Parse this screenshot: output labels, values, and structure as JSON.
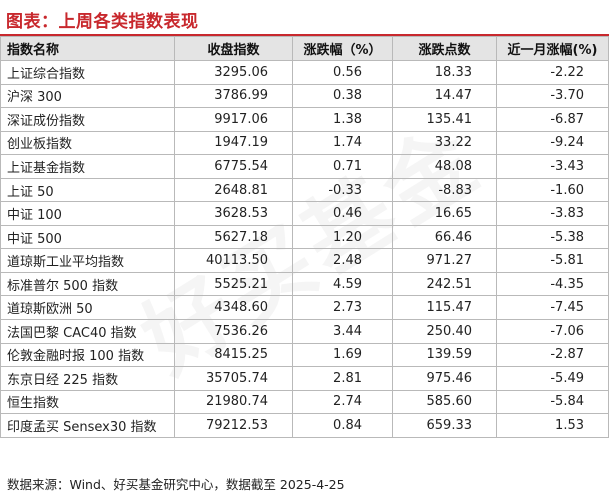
{
  "title": "图表：上周各类指数表现",
  "columns": [
    "指数名称",
    "收盘指数",
    "涨跌幅（%）",
    "涨跌点数",
    "近一月涨幅(%)"
  ],
  "rows": [
    [
      "上证综合指数",
      "3295.06",
      "0.56",
      "18.33",
      "-2.22"
    ],
    [
      "沪深 300",
      "3786.99",
      "0.38",
      "14.47",
      "-3.70"
    ],
    [
      "深证成份指数",
      "9917.06",
      "1.38",
      "135.41",
      "-6.87"
    ],
    [
      "创业板指数",
      "1947.19",
      "1.74",
      "33.22",
      "-9.24"
    ],
    [
      "上证基金指数",
      "6775.54",
      "0.71",
      "48.08",
      "-3.43"
    ],
    [
      "上证 50",
      "2648.81",
      "-0.33",
      "-8.83",
      "-1.60"
    ],
    [
      "中证 100",
      "3628.53",
      "0.46",
      "16.65",
      "-3.83"
    ],
    [
      "中证 500",
      "5627.18",
      "1.20",
      "66.46",
      "-5.38"
    ],
    [
      "道琼斯工业平均指数",
      "40113.50",
      "2.48",
      "971.27",
      "-5.81"
    ],
    [
      "标准普尔 500 指数",
      "5525.21",
      "4.59",
      "242.51",
      "-4.35"
    ],
    [
      "道琼斯欧洲 50",
      "4348.60",
      "2.73",
      "115.47",
      "-7.45"
    ],
    [
      "法国巴黎 CAC40 指数",
      "7536.26",
      "3.44",
      "250.40",
      "-7.06"
    ],
    [
      "伦敦金融时报 100 指数",
      "8415.25",
      "1.69",
      "139.59",
      "-2.87"
    ],
    [
      "东京日经 225 指数",
      "35705.74",
      "2.81",
      "975.46",
      "-5.49"
    ],
    [
      "恒生指数",
      "21980.74",
      "2.74",
      "585.60",
      "-5.84"
    ],
    [
      "印度孟买 Sensex30 指数",
      "79212.53",
      "0.84",
      "659.33",
      "1.53"
    ]
  ],
  "footer": "数据来源：Wind、好买基金研究中心，数据截至 2025-4-25",
  "watermark": "好买基金",
  "colors": {
    "title": "#c8282d",
    "header_bg": "#e4e4e4",
    "border": "#b9b9b9"
  }
}
